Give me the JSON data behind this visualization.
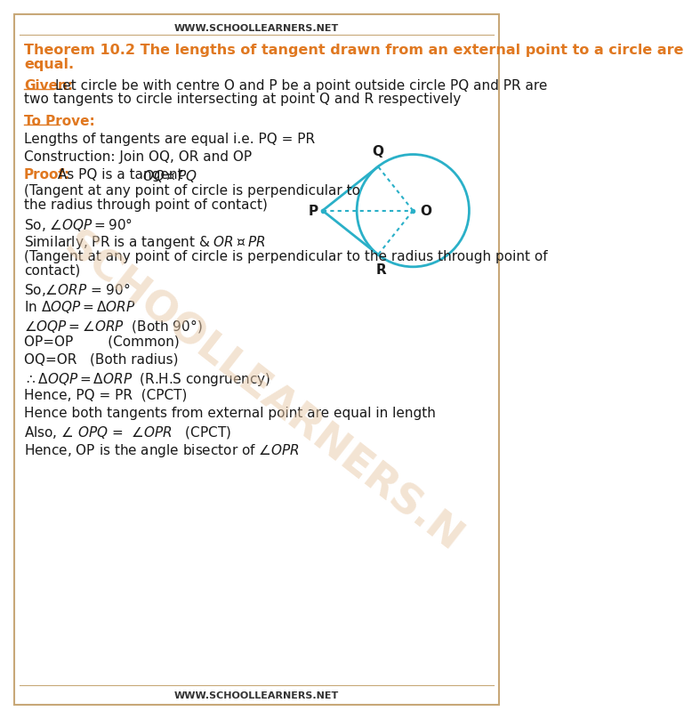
{
  "website": "WWW.SCHOOLLEARNERS.NET",
  "title_orange": "Theorem 10.2 The lengths of tangent drawn from an external point to a circle are equal.",
  "given_label": "Given:",
  "to_prove_label": "To Prove:",
  "proof_label": "Proof:",
  "bg_color": "#ffffff",
  "border_color": "#c8a878",
  "orange_color": "#e07820",
  "text_color": "#1a1a1a",
  "diagram_circle_color": "#2ab0c8",
  "watermark_color": "#e8c9a8"
}
